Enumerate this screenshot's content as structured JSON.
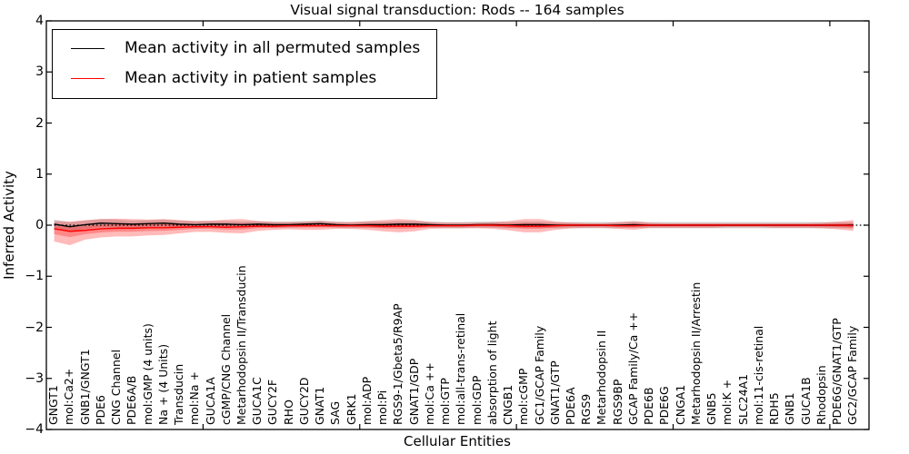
{
  "chart_data": {
    "type": "line",
    "title": "Visual signal transduction: Rods -- 164 samples",
    "xlabel": "Cellular Entities",
    "ylabel": "Inferred Activity",
    "ylim": [
      -4,
      4
    ],
    "ytick_labels": [
      "4",
      "3",
      "2",
      "1",
      "0",
      "−1",
      "−2",
      "−3",
      "−4"
    ],
    "xtick_positions": [
      10,
      20,
      30,
      40,
      50
    ],
    "grid": false,
    "legend_position": "upper left",
    "legend": [
      {
        "label": "Mean activity in all permuted samples",
        "color": "#000000"
      },
      {
        "label": "Mean activity in patient samples",
        "color": "#ff0000"
      }
    ],
    "zero_line": {
      "y": 0,
      "style": "dotted",
      "color": "#000000"
    },
    "colors": {
      "permuted_line": "#000000",
      "patient_line": "#ff0000",
      "permuted_band": "#777777",
      "patient_band": "#ff0000"
    },
    "categories": [
      "GNGT1",
      "mol:Ca2+",
      "GNB1/GNGT1",
      "PDE6",
      "CNG Channel",
      "PDE6A/B",
      "mol:GMP (4 units)",
      "Na + (4 Units)",
      "Transducin",
      "mol:Na +",
      "GUCA1A",
      "cGMP/CNG Channel",
      "Metarhodopsin II/Transducin",
      "GUCA1C",
      "GUCY2F",
      "RHO",
      "GUCY2D",
      "GNAT1",
      "SAG",
      "GRK1",
      "mol:ADP",
      "mol:Pi",
      "RGS9-1/Gbeta5/R9AP",
      "GNAT1/GDP",
      "mol:Ca ++",
      "mol:GTP",
      "mol:all-trans-retinal",
      "mol:GDP",
      "absorption of light",
      "CNGB1",
      "mol:cGMP",
      "GC1/GCAP Family",
      "GNAT1/GTP",
      "PDE6A",
      "RGS9",
      "Metarhodopsin II",
      "RGS9BP",
      "GCAP Family/Ca ++",
      "PDE6B",
      "PDE6G",
      "CNGA1",
      "Metarhodopsin II/Arrestin",
      "GNB5",
      "mol:K +",
      "SLC24A1",
      "mol:11-cis-retinal",
      "RDH5",
      "GNB1",
      "GUCA1B",
      "Rhodopsin",
      "PDE6G/GNAT1/GTP",
      "GC2/GCAP Family"
    ],
    "series": [
      {
        "name": "Mean activity in all permuted samples",
        "values": [
          0.02,
          -0.03,
          0.01,
          0.04,
          0.03,
          0.02,
          0.03,
          0.04,
          0.02,
          0.01,
          0.02,
          0.02,
          0.01,
          0.02,
          0.01,
          0.01,
          0.02,
          0.03,
          0.01,
          0.0,
          0.01,
          0.01,
          0.02,
          0.02,
          0.01,
          0.0,
          0.0,
          0.01,
          0.01,
          0.0,
          0.01,
          0.01,
          0.0,
          0.0,
          0.0,
          0.0,
          0.0,
          0.01,
          0.0,
          0.0,
          0.0,
          0.0,
          0.0,
          0.0,
          0.0,
          0.0,
          0.0,
          0.0,
          0.0,
          0.0,
          0.0,
          0.0
        ],
        "band_upper": [
          0.11,
          0.06,
          0.09,
          0.12,
          0.11,
          0.09,
          0.1,
          0.11,
          0.09,
          0.08,
          0.08,
          0.08,
          0.07,
          0.08,
          0.07,
          0.07,
          0.08,
          0.09,
          0.07,
          0.06,
          0.07,
          0.07,
          0.08,
          0.08,
          0.07,
          0.06,
          0.06,
          0.07,
          0.07,
          0.06,
          0.07,
          0.07,
          0.06,
          0.06,
          0.06,
          0.06,
          0.06,
          0.07,
          0.06,
          0.06,
          0.06,
          0.06,
          0.06,
          0.06,
          0.06,
          0.06,
          0.06,
          0.06,
          0.06,
          0.06,
          0.06,
          0.06
        ],
        "band_lower": [
          -0.07,
          -0.12,
          -0.07,
          -0.04,
          -0.05,
          -0.05,
          -0.04,
          -0.03,
          -0.05,
          -0.06,
          -0.04,
          -0.04,
          -0.05,
          -0.04,
          -0.05,
          -0.05,
          -0.04,
          -0.03,
          -0.05,
          -0.06,
          -0.05,
          -0.05,
          -0.04,
          -0.04,
          -0.05,
          -0.06,
          -0.06,
          -0.05,
          -0.05,
          -0.06,
          -0.05,
          -0.05,
          -0.06,
          -0.06,
          -0.06,
          -0.06,
          -0.06,
          -0.05,
          -0.06,
          -0.06,
          -0.06,
          -0.06,
          -0.06,
          -0.06,
          -0.06,
          -0.06,
          -0.06,
          -0.06,
          -0.06,
          -0.06,
          -0.06,
          -0.06
        ]
      },
      {
        "name": "Mean activity in patient samples",
        "values": [
          -0.07,
          -0.12,
          -0.1,
          -0.07,
          -0.06,
          -0.06,
          -0.05,
          -0.05,
          -0.04,
          -0.03,
          -0.03,
          -0.04,
          -0.03,
          -0.02,
          -0.02,
          -0.01,
          -0.01,
          -0.01,
          -0.01,
          -0.01,
          -0.01,
          -0.02,
          -0.02,
          -0.02,
          -0.01,
          -0.01,
          -0.01,
          0.0,
          0.0,
          -0.01,
          -0.02,
          -0.02,
          -0.01,
          0.0,
          0.0,
          0.0,
          -0.01,
          -0.01,
          0.0,
          0.0,
          0.0,
          0.0,
          0.0,
          0.0,
          0.0,
          0.0,
          0.0,
          0.0,
          0.0,
          0.0,
          0.0,
          -0.01
        ],
        "band_upper": [
          0.08,
          0.07,
          0.1,
          0.12,
          0.13,
          0.12,
          0.11,
          0.12,
          0.1,
          0.08,
          0.09,
          0.11,
          0.12,
          0.08,
          0.06,
          0.06,
          0.07,
          0.08,
          0.06,
          0.06,
          0.08,
          0.1,
          0.12,
          0.1,
          0.06,
          0.05,
          0.05,
          0.05,
          0.06,
          0.08,
          0.12,
          0.12,
          0.07,
          0.05,
          0.04,
          0.04,
          0.06,
          0.08,
          0.05,
          0.04,
          0.04,
          0.04,
          0.04,
          0.04,
          0.04,
          0.04,
          0.04,
          0.04,
          0.04,
          0.05,
          0.07,
          0.1
        ],
        "band_lower": [
          -0.32,
          -0.39,
          -0.28,
          -0.24,
          -0.22,
          -0.22,
          -0.2,
          -0.19,
          -0.16,
          -0.13,
          -0.13,
          -0.15,
          -0.16,
          -0.11,
          -0.09,
          -0.08,
          -0.09,
          -0.09,
          -0.07,
          -0.07,
          -0.09,
          -0.12,
          -0.14,
          -0.12,
          -0.07,
          -0.06,
          -0.06,
          -0.06,
          -0.07,
          -0.1,
          -0.14,
          -0.14,
          -0.09,
          -0.06,
          -0.05,
          -0.05,
          -0.07,
          -0.09,
          -0.05,
          -0.05,
          -0.05,
          -0.05,
          -0.05,
          -0.04,
          -0.04,
          -0.04,
          -0.05,
          -0.05,
          -0.05,
          -0.06,
          -0.08,
          -0.11
        ]
      }
    ]
  }
}
